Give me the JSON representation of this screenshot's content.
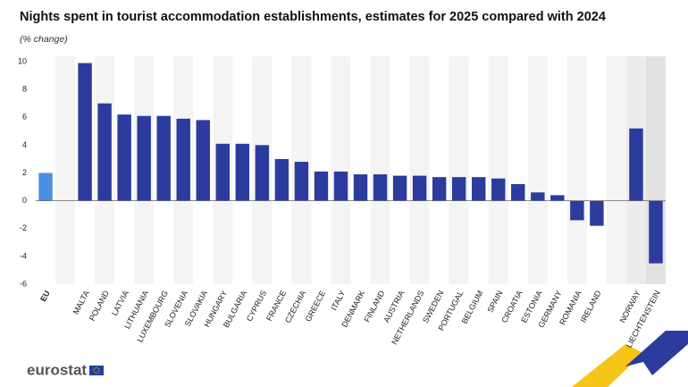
{
  "chart_data": {
    "type": "bar",
    "title": "Nights spent in tourist accommodation establishments, estimates for 2025 compared with 2024",
    "subtitle": "(% change)",
    "categories": [
      "EU",
      null,
      "MALTA",
      "POLAND",
      "LATVIA",
      "LITHUANIA",
      "LUXEMBOURG",
      "SLOVENIA",
      "SLOVAKIA",
      "HUNGARY",
      "BULGARIA",
      "CYPRUS",
      "FRANCE",
      "CZECHIA",
      "GREECE",
      "ITALY",
      "DENMARK",
      "FINLAND",
      "AUSTRIA",
      "NETHERLANDS",
      "SWEDEN",
      "PORTUGAL",
      "BELGIUM",
      "SPAIN",
      "CROATIA",
      "ESTONIA",
      "GERMANY",
      "ROMANIA",
      "IRELAND",
      null,
      "NORWAY",
      "LIECHTENSTEIN"
    ],
    "values": [
      2.0,
      null,
      9.9,
      7.0,
      6.2,
      6.1,
      6.1,
      5.9,
      5.8,
      4.1,
      4.1,
      4.0,
      3.0,
      2.8,
      2.1,
      2.1,
      1.9,
      1.9,
      1.8,
      1.8,
      1.7,
      1.7,
      1.7,
      1.6,
      1.2,
      0.6,
      0.4,
      -1.4,
      -1.8,
      null,
      5.2,
      -4.5
    ],
    "colors": [
      "#4a8fe0",
      null,
      "#2b3c9e",
      "#2b3c9e",
      "#2b3c9e",
      "#2b3c9e",
      "#2b3c9e",
      "#2b3c9e",
      "#2b3c9e",
      "#2b3c9e",
      "#2b3c9e",
      "#2b3c9e",
      "#2b3c9e",
      "#2b3c9e",
      "#2b3c9e",
      "#2b3c9e",
      "#2b3c9e",
      "#2b3c9e",
      "#2b3c9e",
      "#2b3c9e",
      "#2b3c9e",
      "#2b3c9e",
      "#2b3c9e",
      "#2b3c9e",
      "#2b3c9e",
      "#2b3c9e",
      "#2b3c9e",
      "#2b3c9e",
      "#2b3c9e",
      null,
      "#2b3c9e",
      "#2b3c9e"
    ],
    "ylim": [
      -6,
      10
    ],
    "yticks": [
      -6,
      -4,
      -2,
      0,
      2,
      4,
      6,
      8,
      10
    ],
    "grid": false
  },
  "logo_text": "eurostat"
}
